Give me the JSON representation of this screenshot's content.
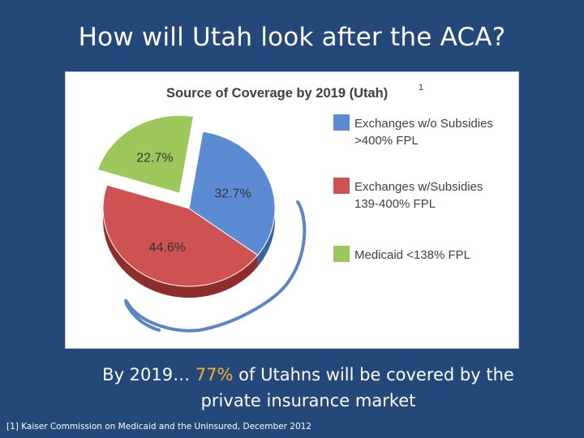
{
  "slide": {
    "title": "How will Utah look after the ACA?",
    "caption_prefix": "By 2019… ",
    "caption_highlight": "77%",
    "caption_line1_rest": " of Utahns will be covered by the",
    "caption_line2": "private insurance market",
    "footnote": "[1] Kaiser Commission on Medicaid and the Uninsured, December 2012"
  },
  "colors": {
    "background": "#24487a",
    "highlight": "#f5b52a",
    "blue": "#5b8bd3",
    "red": "#cf5252",
    "green": "#9cc75a"
  },
  "chart_data": {
    "type": "pie",
    "title": "Source of Coverage by 2019 (Utah)",
    "title_superscript": "1",
    "slices": [
      {
        "label": "Exchanges w/o Subsidies >400% FPL",
        "legend_line1": "Exchanges w/o Subsidies",
        "legend_line2": ">400% FPL",
        "value": 32.7,
        "value_label": "32.7%",
        "color": "#5b8bd3",
        "dark": "#3a64a3"
      },
      {
        "label": "Exchanges w/Subsidies 139-400% FPL",
        "legend_line1": "Exchanges w/Subsidies",
        "legend_line2": "139-400% FPL",
        "value": 44.6,
        "value_label": "44.6%",
        "color": "#cf5252",
        "dark": "#8f2d2d"
      },
      {
        "label": "Medicaid <138% FPL",
        "legend_line1": "Medicaid <138% FPL",
        "legend_line2": "",
        "value": 22.7,
        "value_label": "22.7%",
        "color": "#9cc75a",
        "dark": "#6b8f34"
      }
    ],
    "exploded_slice": "Medicaid <138% FPL",
    "legend_position": "right"
  }
}
